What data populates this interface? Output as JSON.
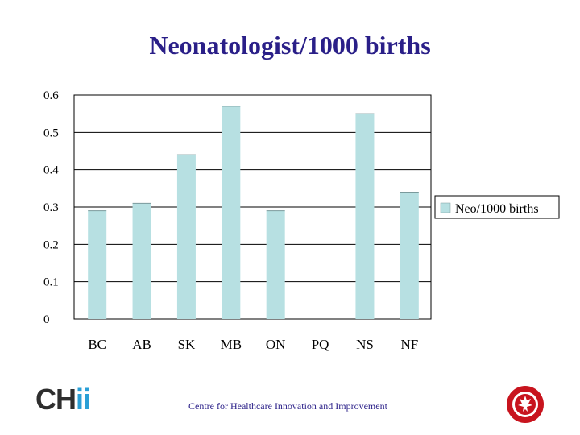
{
  "title": "Neonatologist/1000 births",
  "footer": "Centre for Healthcare Innovation and Improvement",
  "logo": {
    "part1": "CH",
    "part2": "ii",
    "accent": "#2a9fd6"
  },
  "seal_icon": "red-circular-seal",
  "colors": {
    "bar": "#b7e0e2",
    "bar_stroke": "#7a9a9c",
    "title": "#2a1f88"
  },
  "chart_data": {
    "type": "bar",
    "title": "Neonatologist/1000 births",
    "categories": [
      "BC",
      "AB",
      "SK",
      "MB",
      "ON",
      "PQ",
      "NS",
      "NF"
    ],
    "series": [
      {
        "name": "Neo/1000 births",
        "values": [
          0.29,
          0.31,
          0.44,
          0.57,
          0.29,
          0,
          0.55,
          0.34
        ]
      }
    ],
    "yticks": [
      "0",
      "0.1",
      "0.2",
      "0.3",
      "0.4",
      "0.5",
      "0.6"
    ],
    "ylim": [
      0,
      0.6
    ],
    "grid": true,
    "legend": "right"
  }
}
